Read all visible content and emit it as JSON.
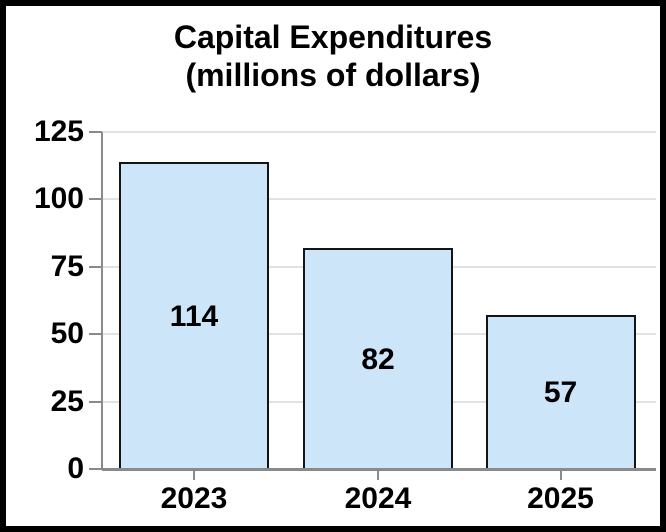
{
  "chart_data": {
    "type": "bar",
    "title": "Capital Expenditures",
    "subtitle": "(millions of dollars)",
    "categories": [
      "2023",
      "2024",
      "2025"
    ],
    "values": [
      114,
      82,
      57
    ],
    "bar_labels": [
      "114",
      "82",
      "57"
    ],
    "yticks": [
      0,
      25,
      50,
      75,
      100,
      125
    ],
    "ytick_labels": [
      "0",
      "25",
      "50",
      "75",
      "100",
      "125"
    ],
    "ylim": [
      0,
      125
    ],
    "xlabel": "",
    "ylabel": "",
    "grid": true,
    "legend": "none",
    "colors": {
      "bar_fill": "#cde5f8",
      "bar_border": "#141414",
      "axis": "#8a8a8a",
      "grid": "#e2e2e2",
      "text": "#000000",
      "frame_border": "#000000",
      "background": "#ffffff"
    }
  }
}
